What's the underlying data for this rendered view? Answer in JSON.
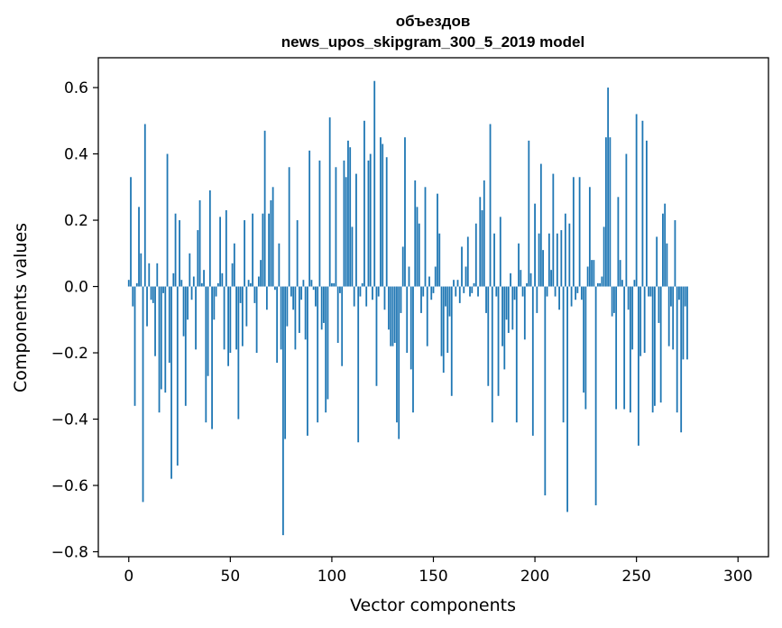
{
  "chart_data": {
    "type": "bar",
    "title_line1": "объездов",
    "title_line2": "news_upos_skipgram_300_5_2019 model",
    "xlabel": "Vector components",
    "ylabel": "Components values",
    "xlim": [
      -15,
      315
    ],
    "ylim": [
      -0.815,
      0.69
    ],
    "x_ticks": [
      0,
      50,
      100,
      150,
      200,
      250,
      300
    ],
    "y_ticks": [
      -0.8,
      -0.6,
      -0.4,
      -0.2,
      0.0,
      0.2,
      0.4,
      0.6
    ],
    "y_tick_labels": [
      "−0.8",
      "−0.6",
      "−0.4",
      "−0.2",
      "0.0",
      "0.2",
      "0.4",
      "0.6"
    ],
    "bar_color": "#1f77b4",
    "grid": false,
    "legend": "none",
    "values": [
      0.02,
      0.33,
      -0.06,
      -0.36,
      0.01,
      0.24,
      0.1,
      -0.65,
      0.49,
      -0.12,
      0.07,
      -0.04,
      -0.05,
      -0.21,
      0.07,
      -0.38,
      -0.31,
      -0.02,
      -0.32,
      0.4,
      -0.23,
      -0.58,
      0.04,
      0.22,
      -0.54,
      0.2,
      0.02,
      -0.15,
      -0.36,
      -0.1,
      0.1,
      -0.04,
      0.03,
      -0.19,
      0.17,
      0.26,
      0.01,
      0.05,
      -0.41,
      -0.27,
      0.29,
      -0.43,
      -0.1,
      -0.03,
      0.01,
      0.21,
      0.04,
      -0.19,
      0.23,
      -0.24,
      -0.2,
      0.07,
      0.13,
      -0.19,
      -0.4,
      -0.05,
      -0.18,
      0.2,
      -0.12,
      0.02,
      0.01,
      0.22,
      -0.05,
      -0.2,
      0.03,
      0.08,
      0.22,
      0.47,
      -0.07,
      0.22,
      0.26,
      0.3,
      -0.01,
      -0.23,
      0.13,
      -0.19,
      -0.75,
      -0.46,
      -0.12,
      0.36,
      -0.03,
      -0.07,
      -0.19,
      0.2,
      -0.14,
      -0.04,
      0.02,
      -0.16,
      -0.45,
      0.41,
      0.02,
      -0.01,
      -0.06,
      -0.41,
      0.38,
      -0.13,
      -0.11,
      -0.38,
      -0.34,
      0.51,
      0.01,
      0.01,
      0.36,
      -0.17,
      -0.02,
      -0.24,
      0.38,
      0.33,
      0.44,
      0.42,
      0.18,
      -0.06,
      0.34,
      -0.47,
      -0.03,
      0.01,
      0.5,
      -0.06,
      0.38,
      0.4,
      -0.04,
      0.62,
      -0.3,
      -0.03,
      0.45,
      0.43,
      -0.07,
      0.39,
      -0.13,
      -0.18,
      -0.18,
      -0.17,
      -0.41,
      -0.46,
      -0.08,
      0.12,
      0.45,
      -0.2,
      0.06,
      -0.25,
      -0.38,
      0.32,
      0.24,
      0.19,
      -0.08,
      -0.03,
      0.3,
      -0.18,
      0.03,
      -0.04,
      -0.02,
      0.06,
      0.28,
      0.16,
      -0.21,
      -0.26,
      -0.06,
      -0.2,
      -0.09,
      -0.33,
      0.02,
      -0.03,
      0.02,
      -0.05,
      0.12,
      -0.02,
      0.06,
      0.15,
      -0.03,
      -0.02,
      0.01,
      0.19,
      -0.03,
      0.27,
      0.23,
      0.32,
      -0.08,
      -0.3,
      0.49,
      -0.41,
      0.16,
      -0.03,
      -0.33,
      0.21,
      -0.18,
      -0.25,
      -0.1,
      -0.14,
      0.04,
      -0.13,
      -0.04,
      -0.41,
      0.13,
      0.05,
      -0.03,
      -0.16,
      0.01,
      0.44,
      0.04,
      -0.45,
      0.25,
      -0.08,
      0.16,
      0.37,
      0.11,
      -0.63,
      -0.03,
      0.16,
      0.05,
      0.34,
      -0.03,
      0.16,
      -0.07,
      0.17,
      -0.41,
      0.22,
      -0.68,
      0.19,
      -0.06,
      0.33,
      -0.04,
      -0.02,
      0.33,
      -0.04,
      -0.32,
      -0.37,
      0.06,
      0.3,
      0.08,
      0.08,
      -0.66,
      0.01,
      0.01,
      0.03,
      0.18,
      0.45,
      0.6,
      0.45,
      -0.09,
      -0.08,
      -0.37,
      0.27,
      0.08,
      0.02,
      -0.37,
      0.4,
      -0.07,
      -0.38,
      -0.19,
      0.02,
      0.52,
      -0.48,
      -0.21,
      0.5,
      -0.2,
      0.44,
      -0.03,
      -0.03,
      -0.38,
      -0.36,
      0.15,
      -0.11,
      -0.35,
      0.22,
      0.25,
      0.13,
      -0.18,
      -0.06,
      -0.19,
      0.2,
      -0.38,
      -0.04,
      -0.44,
      -0.22,
      -0.06,
      -0.22
    ]
  }
}
